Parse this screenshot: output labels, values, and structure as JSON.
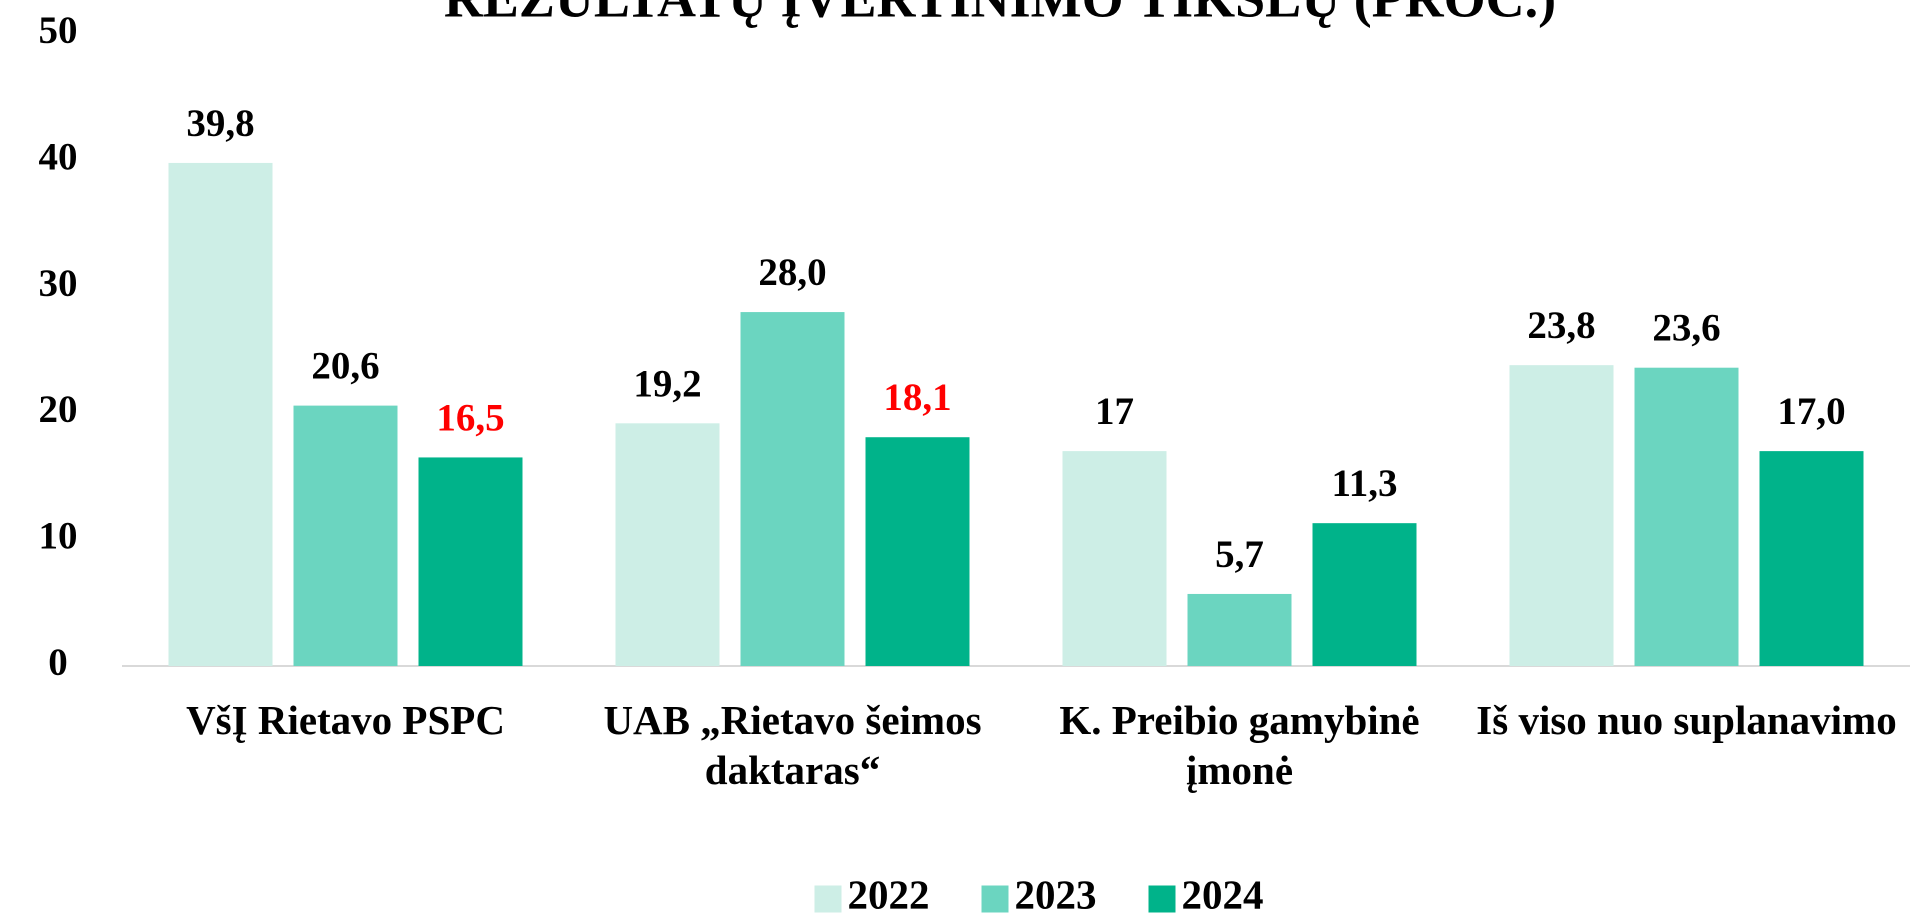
{
  "chart_data": {
    "type": "bar",
    "title": "REZULTATŲ ĮVERTINIMO TIKSLŲ (PROC.)",
    "categories": [
      "VšĮ Rietavo PSPC",
      "UAB „Rietavo šeimos daktaras“",
      "K. Preibio gamybinė įmonė",
      "Iš viso nuo suplanavimo"
    ],
    "series": [
      {
        "name": "2022",
        "color": "#cdeee6",
        "values": [
          39.8,
          19.2,
          17,
          23.8
        ],
        "value_labels": [
          "39,8",
          "19,2",
          "17",
          "23,8"
        ]
      },
      {
        "name": "2023",
        "color": "#6bd5c0",
        "values": [
          20.6,
          28.0,
          5.7,
          23.6
        ],
        "value_labels": [
          "20,6",
          "28,0",
          "5,7",
          "23,6"
        ]
      },
      {
        "name": "2024",
        "color": "#00b38a",
        "values": [
          16.5,
          18.1,
          11.3,
          17.0
        ],
        "value_labels": [
          "16,5",
          "18,1",
          "11,3",
          "17,0"
        ],
        "value_label_colors": [
          "#ff0000",
          "#ff0000",
          "#000000",
          "#000000"
        ]
      }
    ],
    "value_label_color": "#000000",
    "ylim": [
      0,
      50
    ],
    "yticks": [
      0,
      10,
      20,
      30,
      40,
      50
    ],
    "grid": false,
    "legend": "bottom"
  }
}
